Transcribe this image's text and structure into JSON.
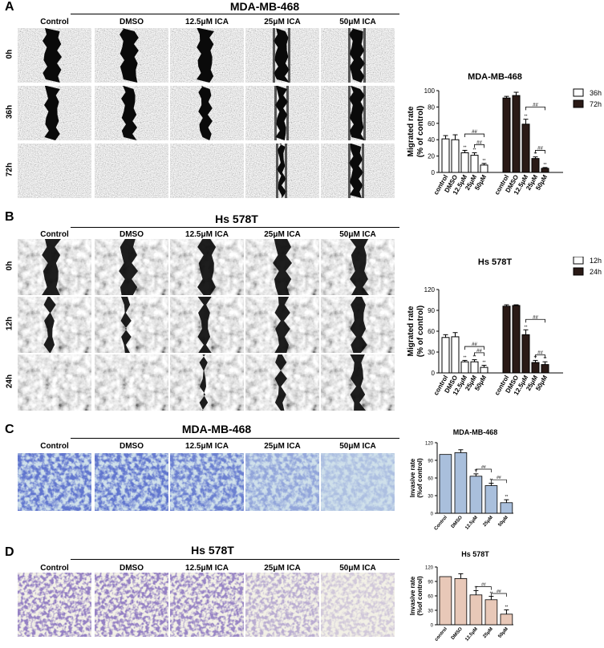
{
  "panelA": {
    "label": "A",
    "title": "MDA-MB-468",
    "columns": [
      "Control",
      "DMSO",
      "12.5μM ICA",
      "25μM ICA",
      "50μM ICA"
    ],
    "rows": [
      "0h",
      "36h",
      "72h"
    ]
  },
  "panelB": {
    "label": "B",
    "title": "Hs 578T",
    "columns": [
      "Control",
      "DMSO",
      "12.5μM ICA",
      "25μM ICA",
      "50μM ICA"
    ],
    "rows": [
      "0h",
      "12h",
      "24h"
    ]
  },
  "panelC": {
    "label": "C",
    "title": "MDA-MB-468",
    "columns": [
      "Control",
      "DMSO",
      "12.5μM ICA",
      "25μM ICA",
      "50μM ICA"
    ]
  },
  "panelD": {
    "label": "D",
    "title": "Hs 578T",
    "columns": [
      "Control",
      "DMSO",
      "12.5μM ICA",
      "25μM ICA",
      "50μM ICA"
    ]
  },
  "colors": {
    "bar_white": "#ffffff",
    "bar_dark": "#2a1a16",
    "bar_blue": "#a9bfdc",
    "bar_pink": "#e8c8b8"
  },
  "chart_data": [
    {
      "id": "chartA",
      "type": "bar",
      "title": "MDA-MB-468",
      "ylabel": "Migrated rate",
      "ylabel2": "(% of control)",
      "ylim": [
        0,
        100
      ],
      "yticks": [
        0,
        20,
        40,
        60,
        80,
        100
      ],
      "categories": [
        "control",
        "DMSO",
        "12.5μM",
        "25μM",
        "50μM"
      ],
      "series": [
        {
          "name": "36h",
          "values": [
            41,
            40,
            24,
            21,
            9
          ],
          "errors": [
            4,
            6,
            3,
            3,
            2
          ],
          "color": "#ffffff"
        },
        {
          "name": "72h",
          "values": [
            91,
            94,
            59,
            17,
            5
          ],
          "errors": [
            2,
            4,
            6,
            2,
            1
          ],
          "color": "#2a1a16"
        }
      ],
      "annotations": [
        "**",
        "##"
      ],
      "legend": "top-right"
    },
    {
      "id": "chartB",
      "type": "bar",
      "title": "Hs 578T",
      "ylabel": "Migrated rate",
      "ylabel2": "(% of control)",
      "ylim": [
        0,
        120
      ],
      "yticks": [
        0,
        30,
        60,
        90,
        120
      ],
      "categories": [
        "control",
        "DMSO",
        "12.5μM",
        "25μM",
        "50μM"
      ],
      "series": [
        {
          "name": "12h",
          "values": [
            51,
            52,
            16,
            16,
            8
          ],
          "errors": [
            4,
            6,
            2,
            3,
            3
          ],
          "color": "#ffffff"
        },
        {
          "name": "24h",
          "values": [
            96,
            97,
            55,
            15,
            12
          ],
          "errors": [
            2,
            1,
            7,
            3,
            4
          ],
          "color": "#2a1a16"
        }
      ],
      "annotations": [
        "**",
        "##"
      ],
      "legend": "top-right"
    },
    {
      "id": "chartC",
      "type": "bar",
      "title": "MDA-MB-468",
      "ylabel": "Invasive rate",
      "ylabel2": "(%of control)",
      "ylim": [
        0,
        120
      ],
      "yticks": [
        0,
        30,
        60,
        90,
        120
      ],
      "categories": [
        "Control",
        "DMSO",
        "12.5μM",
        "25μM",
        "50μM"
      ],
      "values": [
        100,
        103,
        63,
        47,
        18
      ],
      "errors": [
        0,
        5,
        4,
        4,
        5
      ],
      "color": "#a9bfdc",
      "annotations": [
        "**",
        "##"
      ]
    },
    {
      "id": "chartD",
      "type": "bar",
      "title": "Hs 578T",
      "ylabel": "Invasive rate",
      "ylabel2": "(%of control)",
      "ylim": [
        0,
        120
      ],
      "yticks": [
        0,
        30,
        60,
        90,
        120
      ],
      "categories": [
        "control",
        "DMSO",
        "12.5μM",
        "25μM",
        "50μM"
      ],
      "values": [
        100,
        96,
        62,
        52,
        22
      ],
      "errors": [
        0,
        10,
        9,
        7,
        9
      ],
      "color": "#e8c8b8",
      "annotations": [
        "**",
        "##"
      ]
    }
  ]
}
